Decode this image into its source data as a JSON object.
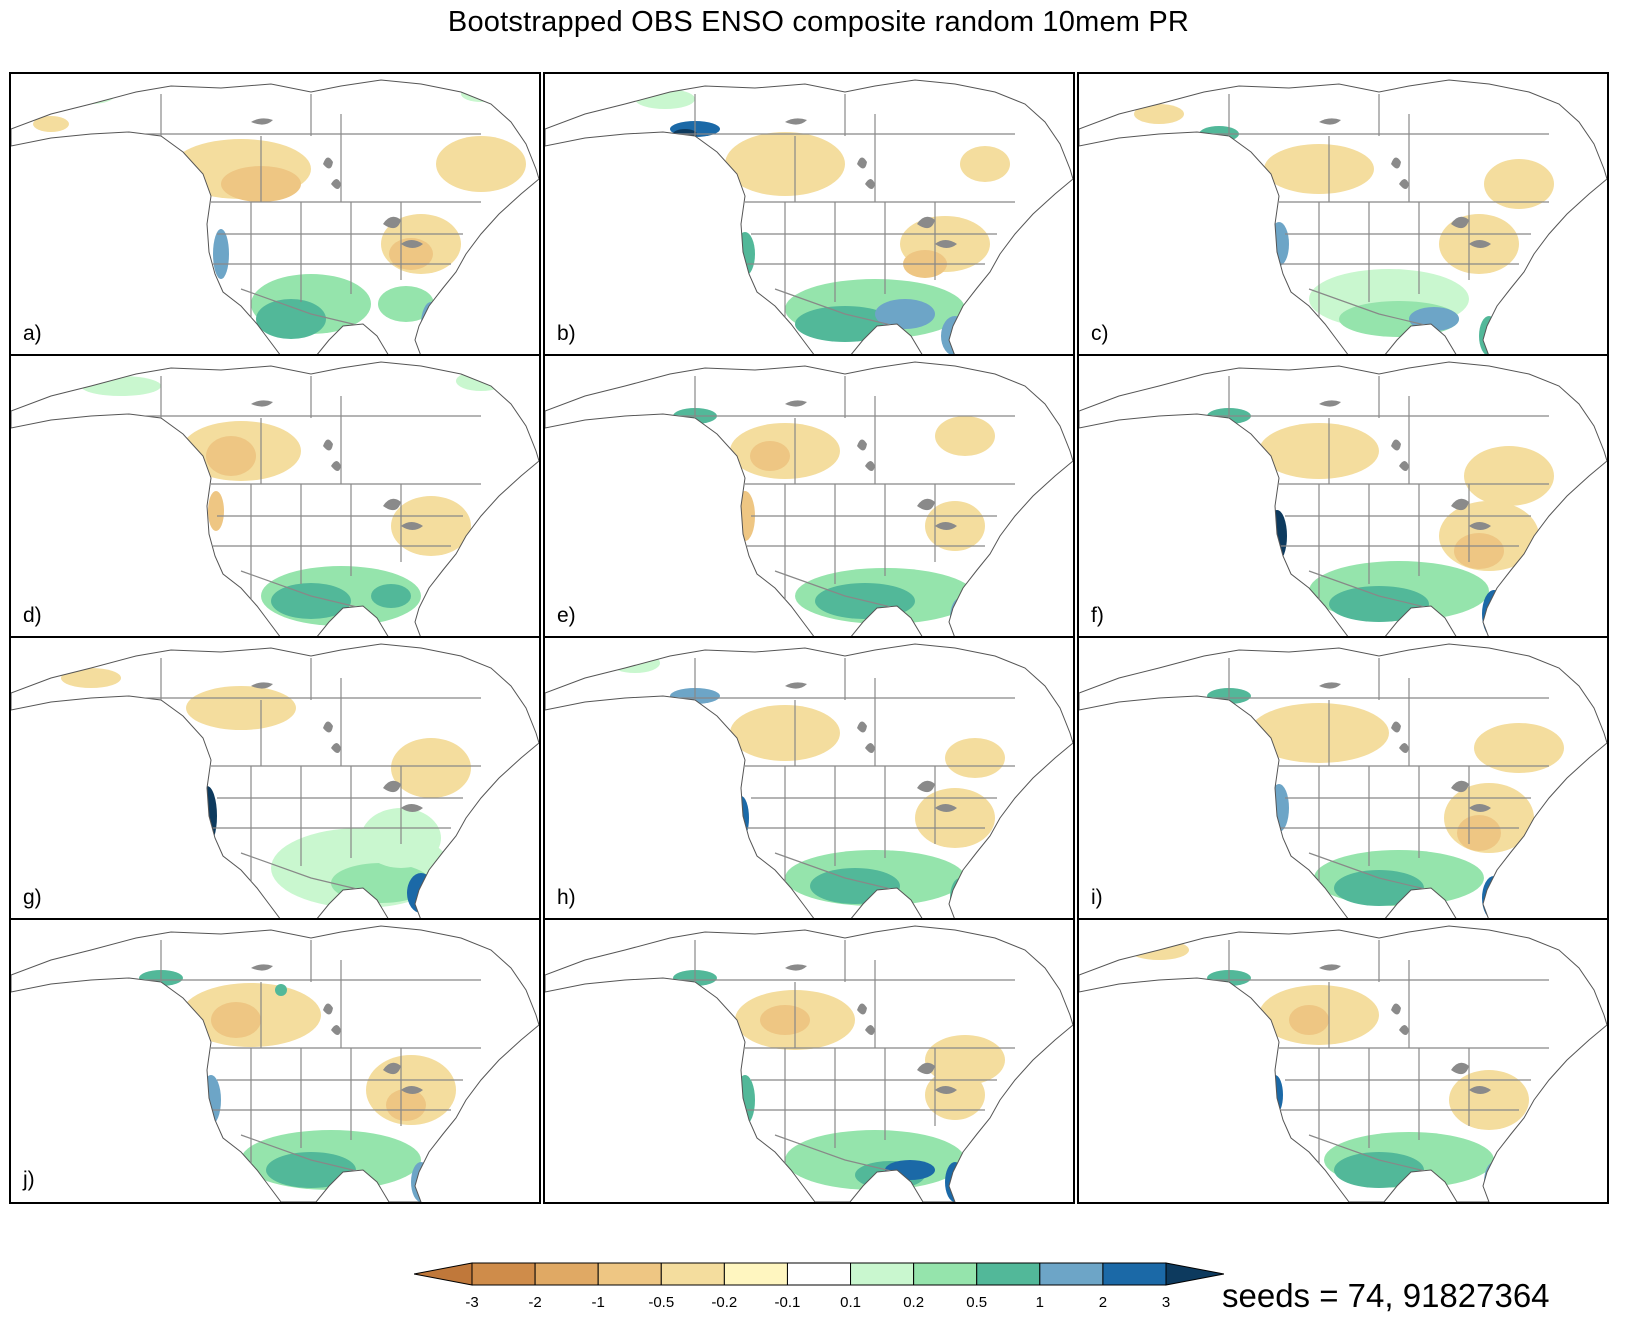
{
  "title": "Bootstrapped OBS ENSO composite random 10mem PR",
  "panels": [
    {
      "label": "a)"
    },
    {
      "label": "b)"
    },
    {
      "label": "c)"
    },
    {
      "label": "d)"
    },
    {
      "label": "e)"
    },
    {
      "label": "f)"
    },
    {
      "label": "g)"
    },
    {
      "label": "h)"
    },
    {
      "label": "i)"
    },
    {
      "label": "j)"
    },
    {
      "label": ""
    },
    {
      "label": ""
    }
  ],
  "colorbar": {
    "levels": [
      "-3",
      "-2",
      "-1",
      "-0.5",
      "-0.2",
      "-0.1",
      "0.1",
      "0.2",
      "0.5",
      "1",
      "2",
      "3"
    ],
    "colors": [
      "#c0783a",
      "#cf8c4a",
      "#e0a964",
      "#eec683",
      "#f4dd9e",
      "#fff6c0",
      "#ffffff",
      "#c9f7cf",
      "#95e4ac",
      "#52b899",
      "#6da5c7",
      "#1b69a7",
      "#0d3a5e"
    ]
  },
  "colors": {
    "land_outline": "#555555",
    "border": "#888888",
    "lake": "#8a8a8a"
  },
  "seeds": "seeds = 74, 91827364"
}
